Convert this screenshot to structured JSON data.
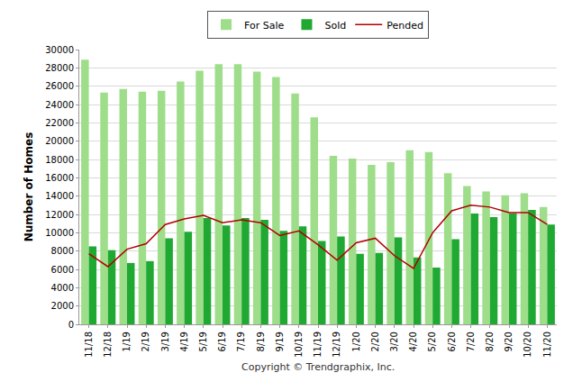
{
  "chart_data": {
    "type": "bar",
    "y_label": "Number of Homes",
    "annotations": [
      "Copyright © Trendgraphix, Inc."
    ],
    "categories": [
      "11/18",
      "12/18",
      "1/19",
      "2/19",
      "3/19",
      "4/19",
      "5/19",
      "6/19",
      "7/19",
      "8/19",
      "9/19",
      "10/19",
      "11/19",
      "12/19",
      "1/20",
      "2/20",
      "3/20",
      "4/20",
      "5/20",
      "6/20",
      "7/20",
      "8/20",
      "9/20",
      "10/20",
      "11/20"
    ],
    "series": [
      {
        "name": "For Sale",
        "type": "bar",
        "color": "#9ede8a",
        "values": [
          28900,
          25300,
          25700,
          25400,
          25500,
          26500,
          27700,
          28400,
          28400,
          27600,
          27000,
          25200,
          22600,
          18400,
          18100,
          17400,
          17700,
          19000,
          18800,
          16500,
          15100,
          14500,
          14100,
          14300,
          12800
        ]
      },
      {
        "name": "Sold",
        "type": "bar",
        "color": "#1fa832",
        "values": [
          8500,
          8100,
          6700,
          6900,
          9400,
          10100,
          11600,
          10800,
          11600,
          11400,
          10200,
          10700,
          9100,
          9600,
          7700,
          7800,
          9500,
          7300,
          6200,
          9300,
          12100,
          11700,
          12100,
          12500,
          10900
        ]
      },
      {
        "name": "Pended",
        "type": "line",
        "color": "#b00000",
        "values": [
          7700,
          6300,
          8200,
          8800,
          10900,
          11500,
          11900,
          11100,
          11400,
          11100,
          9700,
          10200,
          8700,
          7000,
          8900,
          9400,
          7500,
          6100,
          10000,
          12400,
          13000,
          12800,
          12200,
          12200,
          10900
        ]
      }
    ],
    "ylim": [
      0,
      30000
    ],
    "yticks": [
      0,
      2000,
      4000,
      6000,
      8000,
      10000,
      12000,
      14000,
      16000,
      18000,
      20000,
      22000,
      24000,
      26000,
      28000,
      30000
    ],
    "grid": true,
    "legend": "top"
  }
}
